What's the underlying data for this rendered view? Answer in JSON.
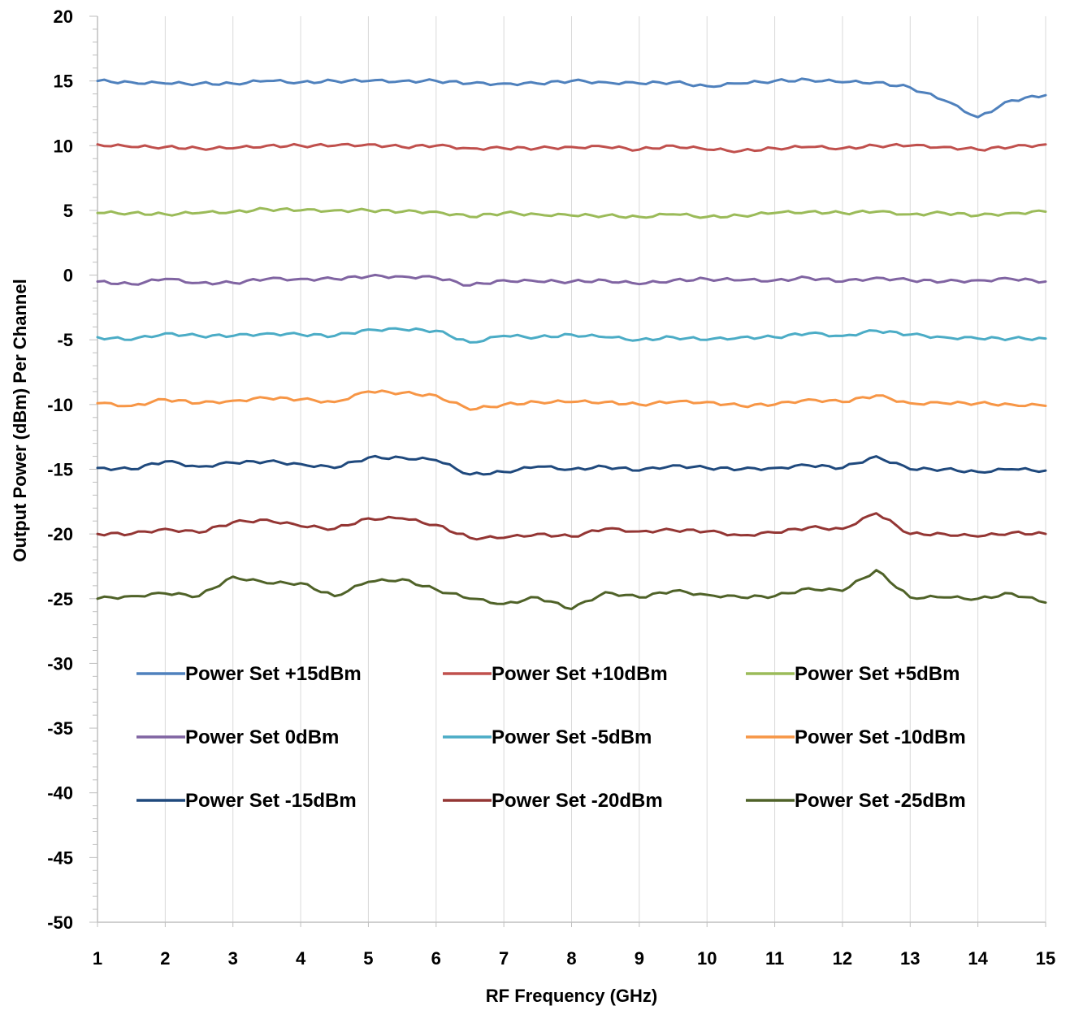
{
  "chart_data": {
    "type": "line",
    "title": "",
    "xlabel": "RF Frequency (GHz)",
    "ylabel": "Output Power (dBm) Per Channel",
    "xlim": [
      1,
      15
    ],
    "ylim": [
      -50,
      20
    ],
    "xticks": [
      1,
      2,
      3,
      4,
      5,
      6,
      7,
      8,
      9,
      10,
      11,
      12,
      13,
      14,
      15
    ],
    "yticks": [
      20,
      15,
      10,
      5,
      0,
      -5,
      -10,
      -15,
      -20,
      -25,
      -30,
      -35,
      -40,
      -45,
      -50
    ],
    "grid": "vertical major",
    "legend": "inside-bottom",
    "x": [
      1,
      1.5,
      2,
      2.5,
      3,
      3.5,
      4,
      4.5,
      5,
      5.5,
      6,
      6.5,
      7,
      7.5,
      8,
      8.5,
      9,
      9.5,
      10,
      10.5,
      11,
      11.5,
      12,
      12.5,
      13,
      13.5,
      14,
      14.5,
      15
    ],
    "series": [
      {
        "name": "Power Set +15dBm",
        "color": "#4F81BD",
        "values": [
          15.0,
          14.9,
          14.8,
          14.8,
          14.8,
          15.0,
          14.9,
          15.0,
          15.0,
          15.0,
          15.0,
          14.8,
          14.8,
          14.8,
          15.0,
          14.9,
          14.8,
          14.9,
          14.6,
          14.8,
          15.0,
          15.1,
          14.9,
          14.9,
          14.5,
          13.5,
          12.2,
          13.5,
          13.9
        ]
      },
      {
        "name": "Power Set +10dBm",
        "color": "#C0504D",
        "values": [
          10.1,
          9.9,
          9.9,
          9.8,
          9.8,
          10.0,
          10.0,
          10.0,
          10.1,
          9.9,
          10.0,
          9.8,
          9.8,
          9.8,
          9.9,
          9.9,
          9.7,
          10.0,
          9.7,
          9.6,
          9.8,
          9.9,
          9.8,
          10.0,
          10.0,
          9.9,
          9.7,
          9.9,
          10.1
        ]
      },
      {
        "name": "Power Set +5dBm",
        "color": "#9BBB59",
        "values": [
          4.8,
          4.8,
          4.7,
          4.8,
          4.9,
          5.1,
          5.0,
          5.0,
          5.0,
          4.9,
          4.9,
          4.5,
          4.8,
          4.7,
          4.6,
          4.6,
          4.5,
          4.7,
          4.5,
          4.6,
          4.8,
          4.9,
          4.8,
          4.9,
          4.7,
          4.8,
          4.6,
          4.8,
          4.9
        ]
      },
      {
        "name": "Power Set 0dBm",
        "color": "#8064A2",
        "values": [
          -0.5,
          -0.7,
          -0.3,
          -0.6,
          -0.6,
          -0.3,
          -0.3,
          -0.3,
          -0.1,
          -0.1,
          -0.2,
          -0.8,
          -0.4,
          -0.5,
          -0.5,
          -0.4,
          -0.7,
          -0.4,
          -0.3,
          -0.4,
          -0.4,
          -0.2,
          -0.5,
          -0.2,
          -0.4,
          -0.5,
          -0.4,
          -0.3,
          -0.5
        ]
      },
      {
        "name": "Power Set -5dBm",
        "color": "#4BACC6",
        "values": [
          -4.8,
          -5.0,
          -4.5,
          -4.7,
          -4.7,
          -4.5,
          -4.6,
          -4.7,
          -4.2,
          -4.2,
          -4.3,
          -5.2,
          -4.7,
          -4.8,
          -4.6,
          -4.8,
          -5.0,
          -4.8,
          -5.0,
          -4.8,
          -4.8,
          -4.5,
          -4.7,
          -4.3,
          -4.6,
          -4.8,
          -4.9,
          -4.9,
          -4.9
        ]
      },
      {
        "name": "Power Set -10dBm",
        "color": "#F79646",
        "values": [
          -9.9,
          -10.1,
          -9.6,
          -9.9,
          -9.7,
          -9.5,
          -9.6,
          -9.8,
          -9.0,
          -9.1,
          -9.3,
          -10.4,
          -10.0,
          -9.8,
          -9.8,
          -9.8,
          -10.0,
          -9.8,
          -9.8,
          -10.1,
          -10.0,
          -9.6,
          -9.8,
          -9.3,
          -9.9,
          -9.9,
          -9.9,
          -10.0,
          -10.1
        ]
      },
      {
        "name": "Power Set -15dBm",
        "color": "#1F497D",
        "values": [
          -14.9,
          -15.0,
          -14.4,
          -14.8,
          -14.5,
          -14.4,
          -14.6,
          -14.9,
          -14.1,
          -14.1,
          -14.3,
          -15.4,
          -15.2,
          -14.8,
          -15.0,
          -14.8,
          -15.1,
          -14.7,
          -14.9,
          -15.0,
          -14.9,
          -14.7,
          -14.9,
          -14.0,
          -15.0,
          -15.0,
          -15.2,
          -15.0,
          -15.1
        ]
      },
      {
        "name": "Power Set -20dBm",
        "color": "#943634",
        "values": [
          -20.0,
          -20.0,
          -19.6,
          -19.9,
          -19.1,
          -18.9,
          -19.4,
          -19.6,
          -18.8,
          -18.8,
          -19.3,
          -20.3,
          -20.3,
          -20.0,
          -20.2,
          -19.6,
          -19.8,
          -19.7,
          -19.8,
          -20.1,
          -19.9,
          -19.5,
          -19.6,
          -18.4,
          -20.0,
          -20.0,
          -20.2,
          -19.9,
          -20.0
        ]
      },
      {
        "name": "Power Set -25dBm",
        "color": "#4F6228",
        "values": [
          -25.0,
          -24.8,
          -24.6,
          -24.8,
          -23.3,
          -23.8,
          -23.8,
          -24.8,
          -23.7,
          -23.5,
          -24.3,
          -25.0,
          -25.4,
          -24.9,
          -25.8,
          -24.5,
          -24.9,
          -24.4,
          -24.7,
          -24.9,
          -24.8,
          -24.2,
          -24.4,
          -22.8,
          -24.9,
          -24.9,
          -25.0,
          -24.6,
          -25.3
        ]
      }
    ]
  }
}
